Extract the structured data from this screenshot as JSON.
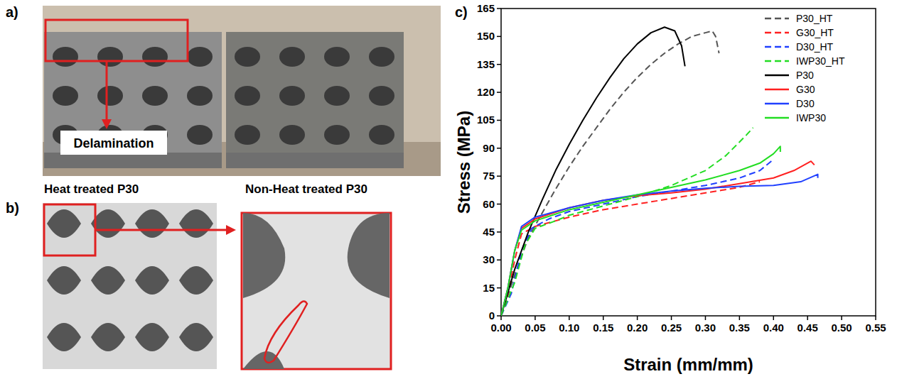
{
  "figure": {
    "panels": [
      {
        "letter": "a)",
        "labels": [
          "Delamination",
          "Heat treated P30",
          "Non-Heat treated P30"
        ]
      },
      {
        "letter": "b)"
      },
      {
        "letter": "c)"
      }
    ]
  },
  "chart_data": {
    "type": "line",
    "x_label": "Strain (mm/mm)",
    "y_label": "Stress (MPa)",
    "xlim": [
      0,
      0.55
    ],
    "xticks": [
      {
        "value": 0,
        "label": "0.00"
      },
      {
        "value": 0.05,
        "label": "0.05"
      },
      {
        "value": 0.1,
        "label": "0.10"
      },
      {
        "value": 0.15,
        "label": "0.15"
      },
      {
        "value": 0.2,
        "label": "0.20"
      },
      {
        "value": 0.25,
        "label": "0.25"
      },
      {
        "value": 0.3,
        "label": "0.30"
      },
      {
        "value": 0.35,
        "label": "0.35"
      },
      {
        "value": 0.4,
        "label": "0.40"
      },
      {
        "value": 0.45,
        "label": "0.45"
      },
      {
        "value": 0.5,
        "label": "0.50"
      },
      {
        "value": 0.55,
        "label": "0.55"
      }
    ],
    "ylim": [
      0,
      165
    ],
    "yticks": [
      0,
      15,
      30,
      45,
      60,
      75,
      90,
      105,
      120,
      135,
      150,
      165
    ],
    "grid": false,
    "legend": "upper right",
    "series": [
      {
        "name": "P30_HT",
        "color": "#555555",
        "line_style": "dashed",
        "x": [
          0,
          0.02,
          0.04,
          0.06,
          0.08,
          0.1,
          0.12,
          0.14,
          0.16,
          0.18,
          0.2,
          0.22,
          0.24,
          0.26,
          0.28,
          0.3,
          0.31,
          0.315,
          0.32
        ],
        "values": [
          0,
          22,
          42,
          55,
          68,
          80,
          91,
          101,
          111,
          120,
          128,
          135,
          141,
          146,
          150,
          152,
          153,
          150,
          141
        ]
      },
      {
        "name": "G30_HT",
        "color": "#ff2020",
        "line_style": "dashed",
        "x": [
          0,
          0.01,
          0.02,
          0.03,
          0.05,
          0.1,
          0.15,
          0.2,
          0.25,
          0.3,
          0.35,
          0.38
        ],
        "values": [
          0,
          12,
          30,
          44,
          48,
          53,
          57,
          60,
          63,
          66,
          69,
          72
        ]
      },
      {
        "name": "D30_HT",
        "color": "#2040ff",
        "line_style": "dashed",
        "x": [
          0,
          0.015,
          0.03,
          0.045,
          0.07,
          0.1,
          0.15,
          0.2,
          0.25,
          0.3,
          0.35,
          0.38,
          0.4
        ],
        "values": [
          0,
          12,
          35,
          47,
          52,
          56,
          60,
          64,
          67,
          70,
          74,
          78,
          84
        ]
      },
      {
        "name": "IWP30_HT",
        "color": "#22dd22",
        "line_style": "dashed",
        "x": [
          0,
          0.02,
          0.035,
          0.05,
          0.08,
          0.1,
          0.15,
          0.2,
          0.25,
          0.3,
          0.33,
          0.36,
          0.37
        ],
        "values": [
          0,
          18,
          38,
          47,
          51,
          54,
          59,
          64,
          70,
          78,
          86,
          97,
          101
        ]
      },
      {
        "name": "P30",
        "color": "#000000",
        "line_style": "solid",
        "x": [
          0,
          0.02,
          0.04,
          0.06,
          0.08,
          0.1,
          0.12,
          0.14,
          0.16,
          0.18,
          0.2,
          0.22,
          0.24,
          0.255,
          0.265,
          0.27
        ],
        "values": [
          0,
          25,
          45,
          62,
          78,
          92,
          105,
          117,
          128,
          138,
          146,
          152,
          155,
          153,
          145,
          134
        ]
      },
      {
        "name": "G30",
        "color": "#ff2020",
        "line_style": "solid",
        "x": [
          0,
          0.01,
          0.02,
          0.03,
          0.05,
          0.1,
          0.15,
          0.2,
          0.25,
          0.3,
          0.35,
          0.4,
          0.43,
          0.455,
          0.46
        ],
        "values": [
          0,
          15,
          35,
          47,
          52,
          58,
          62,
          64.5,
          66,
          68,
          71,
          74,
          78,
          83,
          81
        ]
      },
      {
        "name": "D30",
        "color": "#2040ff",
        "line_style": "solid",
        "x": [
          0,
          0.01,
          0.02,
          0.03,
          0.05,
          0.1,
          0.15,
          0.2,
          0.25,
          0.3,
          0.35,
          0.4,
          0.44,
          0.465,
          0.465
        ],
        "values": [
          0,
          15,
          35,
          48,
          53,
          58,
          62,
          65,
          67,
          68.5,
          69.5,
          70,
          72,
          76,
          74
        ]
      },
      {
        "name": "IWP30",
        "color": "#22dd22",
        "line_style": "solid",
        "x": [
          0,
          0.01,
          0.02,
          0.03,
          0.05,
          0.1,
          0.15,
          0.2,
          0.25,
          0.3,
          0.35,
          0.38,
          0.4,
          0.41,
          0.41
        ],
        "values": [
          0,
          15,
          35,
          46,
          51,
          57,
          61,
          65,
          69,
          73,
          78,
          82,
          87,
          91,
          88
        ]
      }
    ]
  }
}
